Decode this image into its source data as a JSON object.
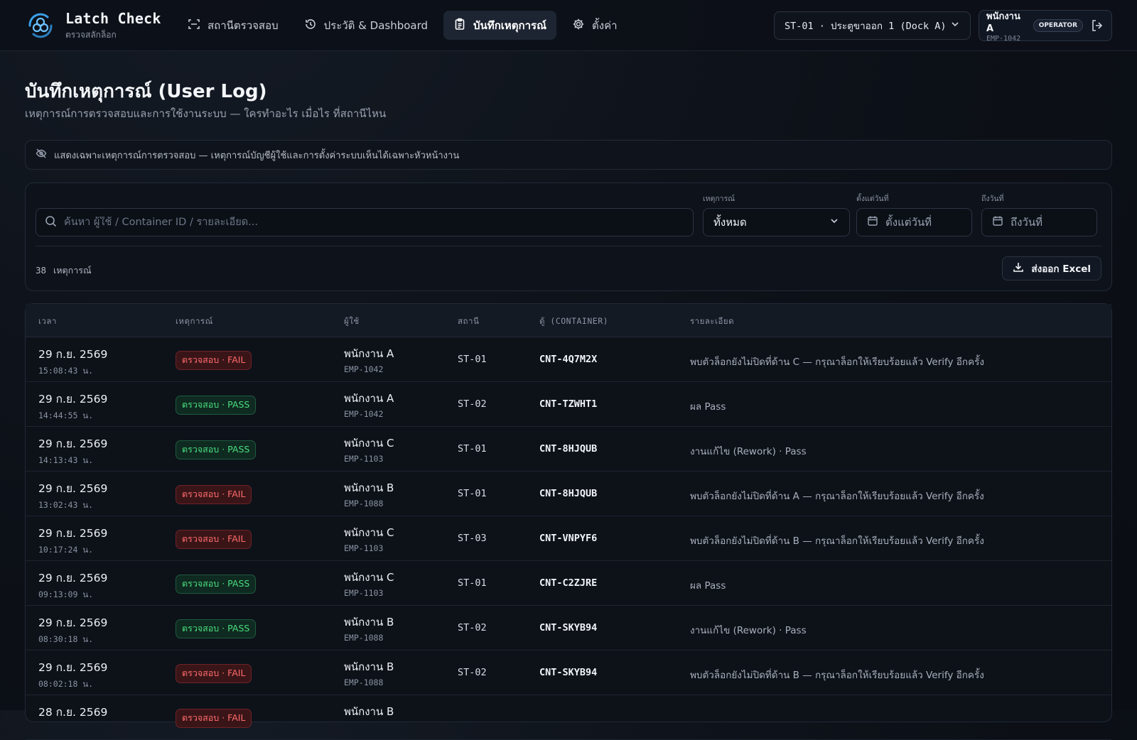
{
  "app": {
    "title": "Latch Check",
    "subtitle": "ตรวจสลักล็อก"
  },
  "nav": [
    {
      "label": "สถานีตรวจสอบ",
      "icon": "scan-icon",
      "active": false
    },
    {
      "label": "ประวัติ & Dashboard",
      "icon": "history-icon",
      "active": false
    },
    {
      "label": "บันทึกเหตุการณ์",
      "icon": "clipboard-icon",
      "active": true
    },
    {
      "label": "ตั้งค่า",
      "icon": "gear-icon",
      "active": false
    }
  ],
  "station_select": {
    "value": "ST-01 · ประตูขาออก 1 (Dock A)"
  },
  "user": {
    "name": "พนักงาน A",
    "emp_id": "EMP-1042",
    "role": "OPERATOR"
  },
  "page": {
    "title": "บันทึกเหตุการณ์ (User Log)",
    "subtitle": "เหตุการณ์การตรวจสอบและการใช้งานระบบ — ใครทำอะไร เมื่อไร ที่สถานีไหน",
    "notice": "แสดงเฉพาะเหตุการณ์การตรวจสอบ — เหตุการณ์บัญชีผู้ใช้และการตั้งค่าระบบเห็นได้เฉพาะหัวหน้างาน"
  },
  "filters": {
    "search_placeholder": "ค้นหา ผู้ใช้ / Container ID / รายละเอียด...",
    "event_label": "เหตุการณ์",
    "event_value": "ทั้งหมด",
    "from_label": "ตั้งแต่วันที่",
    "from_placeholder": "ตั้งแต่วันที่",
    "to_label": "ถึงวันที่",
    "to_placeholder": "ถึงวันที่",
    "count_value": "38",
    "count_unit": "เหตุการณ์",
    "export_label": "ส่งออก Excel"
  },
  "table": {
    "headers": {
      "time": "เวลา",
      "event": "เหตุการณ์",
      "user": "ผู้ใช้",
      "station": "สถานี",
      "container": "ตู้ (CONTAINER)",
      "detail": "รายละเอียด"
    },
    "rows": [
      {
        "date": "29 ก.ย. 2569",
        "time": "15:08:43 น.",
        "event": "ตรวจสอบ · FAIL",
        "status": "fail",
        "user": "พนักงาน A",
        "emp": "EMP-1042",
        "station": "ST-01",
        "container": "CNT-4Q7M2X",
        "detail": "พบตัวล็อกยังไม่ปิดที่ด้าน C — กรุณาล็อกให้เรียบร้อยแล้ว Verify อีกครั้ง"
      },
      {
        "date": "29 ก.ย. 2569",
        "time": "14:44:55 น.",
        "event": "ตรวจสอบ · PASS",
        "status": "pass",
        "user": "พนักงาน A",
        "emp": "EMP-1042",
        "station": "ST-02",
        "container": "CNT-TZWHT1",
        "detail": "ผล Pass"
      },
      {
        "date": "29 ก.ย. 2569",
        "time": "14:13:43 น.",
        "event": "ตรวจสอบ · PASS",
        "status": "pass",
        "user": "พนักงาน C",
        "emp": "EMP-1103",
        "station": "ST-01",
        "container": "CNT-8HJQUB",
        "detail": "งานแก้ไข (Rework) · Pass"
      },
      {
        "date": "29 ก.ย. 2569",
        "time": "13:02:43 น.",
        "event": "ตรวจสอบ · FAIL",
        "status": "fail",
        "user": "พนักงาน B",
        "emp": "EMP-1088",
        "station": "ST-01",
        "container": "CNT-8HJQUB",
        "detail": "พบตัวล็อกยังไม่ปิดที่ด้าน A — กรุณาล็อกให้เรียบร้อยแล้ว Verify อีกครั้ง"
      },
      {
        "date": "29 ก.ย. 2569",
        "time": "10:17:24 น.",
        "event": "ตรวจสอบ · FAIL",
        "status": "fail",
        "user": "พนักงาน C",
        "emp": "EMP-1103",
        "station": "ST-03",
        "container": "CNT-VNPYF6",
        "detail": "พบตัวล็อกยังไม่ปิดที่ด้าน B — กรุณาล็อกให้เรียบร้อยแล้ว Verify อีกครั้ง"
      },
      {
        "date": "29 ก.ย. 2569",
        "time": "09:13:09 น.",
        "event": "ตรวจสอบ · PASS",
        "status": "pass",
        "user": "พนักงาน C",
        "emp": "EMP-1103",
        "station": "ST-01",
        "container": "CNT-C2ZJRE",
        "detail": "ผล Pass"
      },
      {
        "date": "29 ก.ย. 2569",
        "time": "08:30:18 น.",
        "event": "ตรวจสอบ · PASS",
        "status": "pass",
        "user": "พนักงาน B",
        "emp": "EMP-1088",
        "station": "ST-02",
        "container": "CNT-SKYB94",
        "detail": "งานแก้ไข (Rework) · Pass"
      },
      {
        "date": "29 ก.ย. 2569",
        "time": "08:02:18 น.",
        "event": "ตรวจสอบ · FAIL",
        "status": "fail",
        "user": "พนักงาน B",
        "emp": "EMP-1088",
        "station": "ST-02",
        "container": "CNT-SKYB94",
        "detail": "พบตัวล็อกยังไม่ปิดที่ด้าน B — กรุณาล็อกให้เรียบร้อยแล้ว Verify อีกครั้ง"
      },
      {
        "date": "28 ก.ย. 2569",
        "time": "",
        "event": "ตรวจสอบ · FAIL",
        "status": "fail",
        "user": "พนักงาน B",
        "emp": "",
        "station": "",
        "container": "",
        "detail": ""
      }
    ]
  },
  "colors": {
    "accent": "#3aa0e8",
    "fail": "#ff6b6b",
    "pass": "#4ade80",
    "background": "#0c1017"
  }
}
